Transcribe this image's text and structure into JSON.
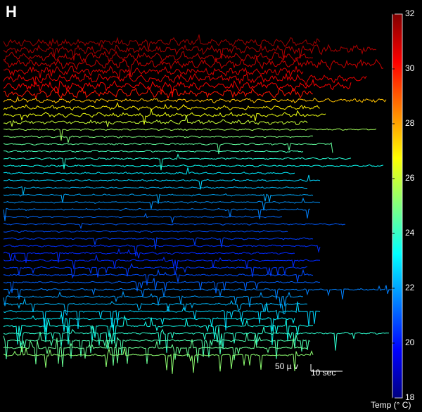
{
  "chart_data": {
    "type": "traces",
    "panel_label": "H",
    "colormap": "jet",
    "clim": [
      18,
      32
    ],
    "cticks": [
      18,
      20,
      22,
      24,
      26,
      28,
      30,
      32
    ],
    "colorbar_label": "Temp (° C)",
    "temperatures": [
      31.6,
      31.4,
      31.2,
      31,
      30.8,
      30.6,
      30.3,
      30,
      27.6,
      27,
      26.5,
      26,
      25.5,
      25,
      24.6,
      24.2,
      23.8,
      23.4,
      23,
      22.7,
      22.4,
      22.1,
      21.8,
      21.5,
      21.2,
      21,
      20.8,
      20.6,
      20.4,
      20.3,
      20.3,
      20.5,
      20.8,
      21.1,
      21.5,
      21.9,
      22.3,
      22.7,
      23.1,
      23.5,
      23.9,
      24.3,
      24.7,
      25.2
    ],
    "durations": [
      100,
      118,
      98,
      120,
      95,
      115,
      110,
      98,
      121,
      100,
      102,
      96,
      118,
      98,
      104,
      95,
      110,
      120,
      92,
      100,
      96,
      98,
      100,
      97,
      88,
      108,
      90,
      98,
      100,
      92,
      100,
      96,
      98,
      100,
      123,
      95,
      96,
      100,
      92,
      98,
      122,
      97,
      96,
      98
    ],
    "scalebar": {
      "amplitude_label": "50 µ v",
      "time": 10,
      "time_label": "10 sec"
    }
  }
}
